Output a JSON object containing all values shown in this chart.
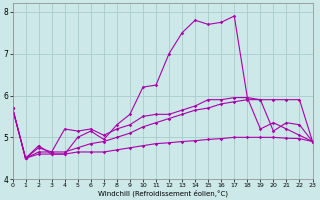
{
  "xlabel": "Windchill (Refroidissement éolien,°C)",
  "bg_color": "#cce8e8",
  "grid_color": "#aacccc",
  "line_color": "#aa00aa",
  "xlim": [
    0,
    23
  ],
  "ylim": [
    4,
    8.2
  ],
  "xticks": [
    0,
    1,
    2,
    3,
    4,
    5,
    6,
    7,
    8,
    9,
    10,
    11,
    12,
    13,
    14,
    15,
    16,
    17,
    18,
    19,
    20,
    21,
    22,
    23
  ],
  "yticks": [
    4,
    5,
    6,
    7,
    8
  ],
  "series": [
    [
      5.7,
      4.5,
      4.8,
      4.6,
      4.6,
      5.0,
      5.15,
      4.95,
      5.3,
      5.55,
      6.2,
      6.25,
      7.0,
      7.5,
      7.8,
      7.7,
      7.75,
      7.9,
      5.95,
      5.9,
      5.15,
      5.35,
      5.3,
      4.9
    ],
    [
      5.7,
      4.5,
      4.75,
      4.65,
      5.2,
      5.15,
      5.2,
      5.05,
      5.2,
      5.3,
      5.5,
      5.55,
      5.55,
      5.65,
      5.75,
      5.9,
      5.9,
      5.95,
      5.95,
      5.2,
      5.35,
      5.2,
      5.05,
      4.9
    ],
    [
      5.7,
      4.5,
      4.65,
      4.65,
      4.65,
      4.75,
      4.85,
      4.9,
      5.0,
      5.1,
      5.25,
      5.35,
      5.45,
      5.55,
      5.65,
      5.7,
      5.8,
      5.85,
      5.9,
      5.9,
      5.9,
      5.9,
      5.9,
      4.9
    ],
    [
      5.7,
      4.5,
      4.6,
      4.6,
      4.6,
      4.65,
      4.65,
      4.65,
      4.7,
      4.75,
      4.8,
      4.85,
      4.87,
      4.9,
      4.92,
      4.95,
      4.97,
      5.0,
      5.0,
      5.0,
      5.0,
      4.98,
      4.97,
      4.9
    ]
  ]
}
